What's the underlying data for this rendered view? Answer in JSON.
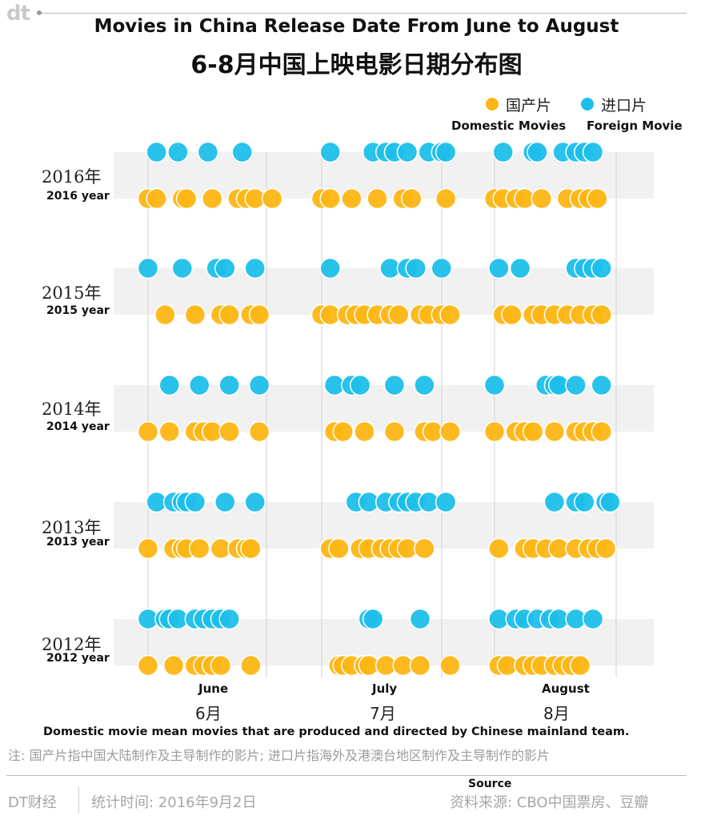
{
  "header": {
    "logo": "dt",
    "title_en": "Movies in China Release Date From June to August",
    "title_zh": "6-8月中国上映电影日期分布图"
  },
  "legend": {
    "domestic_zh": "国产片",
    "domestic_en": "Domestic Movies",
    "foreign_zh": "进口片",
    "foreign_en": "Foreign Movie"
  },
  "colors": {
    "domestic": "#FDB614",
    "foreign": "#1CBFEA",
    "band": "#F1F1F1",
    "gridline": "#D9D9D9"
  },
  "notes": {
    "en": "Domestic movie mean movies that are produced and directed by Chinese mainland team.",
    "zh": "注: 国产片指中国大陆制作及主导制作的影片; 进口片指海外及港澳台地区制作及主导制作的影片"
  },
  "footer": {
    "brand": "DT财经",
    "date": "统计时间: 2016年9月2日",
    "source_en": "Source",
    "source_zh": "资料来源: CBO中国票房、豆瓣"
  },
  "chart_data": {
    "type": "scatter",
    "title": "Movies in China Release Date From June to August",
    "subtitle": "6-8月中国上映电影日期分布图",
    "x_axis": {
      "label": "",
      "range": [
        "06-01",
        "08-31"
      ]
    },
    "months": [
      {
        "en": "June",
        "zh": "6月"
      },
      {
        "en": "July",
        "zh": "7月"
      },
      {
        "en": "August",
        "zh": "8月"
      }
    ],
    "series": [
      {
        "name": "国产片 Domestic Movies",
        "key": "domestic"
      },
      {
        "name": "进口片 Foreign Movie",
        "key": "foreign"
      }
    ],
    "years": [
      {
        "zh": "2016年",
        "en": "2016 year",
        "foreign": [
          "06-03",
          "06-08",
          "06-15",
          "06-23",
          "07-03",
          "07-13",
          "07-16",
          "07-18",
          "07-21",
          "07-26",
          "07-29",
          "07-30",
          "08-03",
          "08-10",
          "08-11",
          "08-17",
          "08-20",
          "08-22",
          "08-24"
        ],
        "domestic": [
          "06-01",
          "06-03",
          "06-09",
          "06-10",
          "06-16",
          "06-22",
          "06-24",
          "06-26",
          "06-30",
          "07-01",
          "07-03",
          "07-08",
          "07-14",
          "07-20",
          "07-22",
          "07-30",
          "08-01",
          "08-03",
          "08-06",
          "08-08",
          "08-12",
          "08-18",
          "08-21",
          "08-23",
          "08-25"
        ]
      },
      {
        "zh": "2015年",
        "en": "2015 year",
        "foreign": [
          "06-01",
          "06-09",
          "06-17",
          "06-19",
          "06-26",
          "07-03",
          "07-17",
          "07-21",
          "07-23",
          "07-29",
          "08-02",
          "08-07",
          "08-20",
          "08-22",
          "08-24",
          "08-26"
        ],
        "domestic": [
          "06-05",
          "06-12",
          "06-18",
          "06-20",
          "06-25",
          "06-27",
          "07-01",
          "07-03",
          "07-07",
          "07-09",
          "07-11",
          "07-14",
          "07-17",
          "07-19",
          "07-24",
          "07-26",
          "07-29",
          "07-31",
          "08-03",
          "08-05",
          "08-10",
          "08-12",
          "08-15",
          "08-18",
          "08-21",
          "08-24",
          "08-26"
        ]
      },
      {
        "zh": "2014年",
        "en": "2014 year",
        "foreign": [
          "06-06",
          "06-13",
          "06-20",
          "06-27",
          "07-04",
          "07-08",
          "07-10",
          "07-18",
          "07-25",
          "08-01",
          "08-13",
          "08-15",
          "08-16",
          "08-20",
          "08-26"
        ],
        "domestic": [
          "06-01",
          "06-06",
          "06-12",
          "06-14",
          "06-16",
          "06-20",
          "06-27",
          "07-04",
          "07-06",
          "07-11",
          "07-18",
          "07-25",
          "07-27",
          "07-31",
          "08-01",
          "08-06",
          "08-08",
          "08-10",
          "08-15",
          "08-20",
          "08-22",
          "08-24",
          "08-26"
        ]
      },
      {
        "zh": "2013年",
        "en": "2013 year",
        "foreign": [
          "06-03",
          "06-07",
          "06-09",
          "06-10",
          "06-12",
          "06-19",
          "06-26",
          "07-09",
          "07-12",
          "07-16",
          "07-19",
          "07-21",
          "07-23",
          "07-26",
          "07-30",
          "08-15",
          "08-20",
          "08-22",
          "08-27",
          "08-28"
        ],
        "domestic": [
          "06-01",
          "06-07",
          "06-09",
          "06-10",
          "06-13",
          "06-18",
          "06-22",
          "06-24",
          "06-25",
          "07-03",
          "07-05",
          "07-10",
          "07-12",
          "07-15",
          "07-17",
          "07-19",
          "07-21",
          "07-25",
          "08-02",
          "08-08",
          "08-10",
          "08-13",
          "08-16",
          "08-20",
          "08-23",
          "08-25",
          "08-27"
        ]
      },
      {
        "zh": "2012年",
        "en": "2012 year",
        "foreign": [
          "06-01",
          "06-05",
          "06-06",
          "06-08",
          "06-12",
          "06-14",
          "06-16",
          "06-18",
          "06-20",
          "07-12",
          "07-13",
          "07-24",
          "08-02",
          "08-06",
          "08-08",
          "08-11",
          "08-14",
          "08-16",
          "08-20",
          "08-24"
        ],
        "domestic": [
          "06-01",
          "06-07",
          "06-12",
          "06-14",
          "06-16",
          "06-18",
          "06-25",
          "07-05",
          "07-06",
          "07-08",
          "07-11",
          "07-12",
          "07-16",
          "07-20",
          "07-24",
          "07-31",
          "08-02",
          "08-04",
          "08-08",
          "08-10",
          "08-12",
          "08-15",
          "08-17",
          "08-19",
          "08-21"
        ]
      }
    ]
  }
}
